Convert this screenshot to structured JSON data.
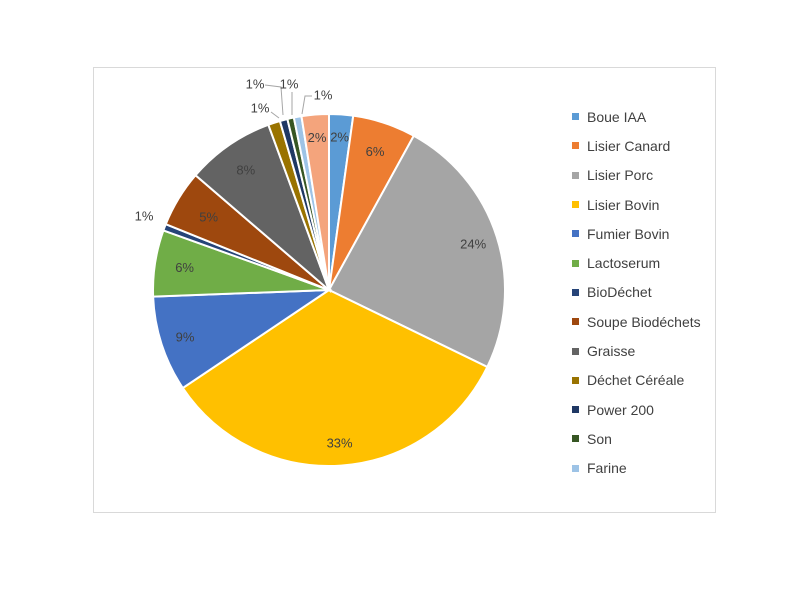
{
  "chart_data": {
    "type": "pie",
    "title": "",
    "categories": [
      "Boue IAA",
      "Lisier Canard",
      "Lisier Porc",
      "Lisier Bovin",
      "Fumier Bovin",
      "Lactoserum",
      "BioDéchet",
      "Soupe Biodéchets",
      "Graisse",
      "Déchet Céréale",
      "Power 200",
      "Son",
      "Farine"
    ],
    "values": [
      2.2,
      5.8,
      24.2,
      33.4,
      8.8,
      6.1,
      0.6,
      5.2,
      8.1,
      1.1,
      0.7,
      0.6,
      0.7
    ],
    "labels": [
      "2%",
      "6%",
      "24%",
      "33%",
      "9%",
      "6%",
      "1%",
      "5%",
      "8%",
      "1%",
      "1%",
      "1%",
      "1%"
    ],
    "extra_slice": {
      "value": 2.5,
      "label": "2%",
      "color": "#F4A47C"
    },
    "colors": [
      "#5B9BD5",
      "#ED7D31",
      "#A5A5A5",
      "#FFC000",
      "#4472C4",
      "#70AD47",
      "#264478",
      "#9E480E",
      "#636363",
      "#997300",
      "#1F3864",
      "#375623",
      "#9DC3E6"
    ],
    "legend_position": "right"
  },
  "legend": {
    "items": [
      {
        "label": "Boue IAA",
        "color": "#5B9BD5"
      },
      {
        "label": "Lisier Canard",
        "color": "#ED7D31"
      },
      {
        "label": "Lisier Porc",
        "color": "#A5A5A5"
      },
      {
        "label": "Lisier Bovin",
        "color": "#FFC000"
      },
      {
        "label": "Fumier Bovin",
        "color": "#4472C4"
      },
      {
        "label": "Lactoserum",
        "color": "#70AD47"
      },
      {
        "label": "BioDéchet",
        "color": "#264478"
      },
      {
        "label": "Soupe Biodéchets",
        "color": "#9E480E"
      },
      {
        "label": "Graisse",
        "color": "#636363"
      },
      {
        "label": "Déchet Céréale",
        "color": "#997300"
      },
      {
        "label": "Power 200",
        "color": "#1F3864"
      },
      {
        "label": "Son",
        "color": "#375623"
      },
      {
        "label": "Farine",
        "color": "#9DC3E6"
      }
    ]
  }
}
